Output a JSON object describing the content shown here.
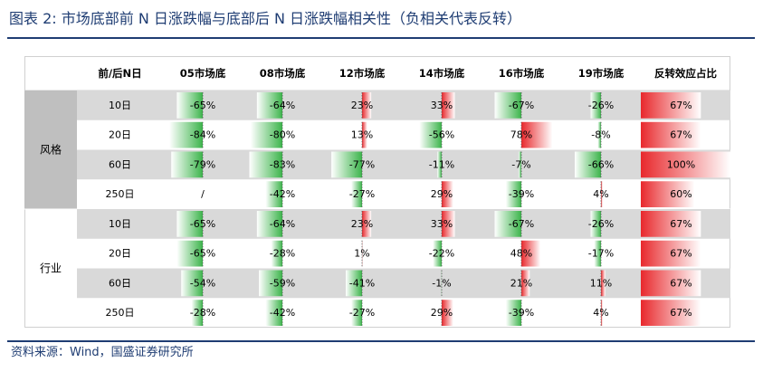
{
  "title": "图表 2:  市场底部前 N 日涨跌幅与底部后 N 日涨跌幅相关性（负相关代表反转）",
  "source": "资料来源：Wind，国盛证券研究所",
  "colors": {
    "title": "#1f3d73",
    "positive": "#e8282c",
    "negative": "#3cb44b",
    "band_gray": "#d9d9d9",
    "group_gray": "#bfbfbf"
  },
  "chart_data": {
    "type": "table",
    "header": [
      "前/后N日",
      "05市场底",
      "08市场底",
      "12市场底",
      "14市场底",
      "16市场底",
      "19市场底",
      "反转效应占比"
    ],
    "groups": [
      {
        "name": "风格",
        "rows": [
          {
            "label": "10日",
            "values": [
              -65,
              -64,
              23,
              33,
              -67,
              -26
            ],
            "display": [
              "-65%",
              "-64%",
              "23%",
              "33%",
              "-67%",
              "-26%"
            ],
            "ratio": 67,
            "ratio_label": "67%"
          },
          {
            "label": "20日",
            "values": [
              -84,
              -80,
              13,
              -56,
              78,
              -8
            ],
            "display": [
              "-84%",
              "-80%",
              "13%",
              "-56%",
              "78%",
              "-8%"
            ],
            "ratio": 67,
            "ratio_label": "67%"
          },
          {
            "label": "60日",
            "values": [
              -79,
              -83,
              -77,
              -11,
              -7,
              -66
            ],
            "display": [
              "-79%",
              "-83%",
              "-77%",
              "-11%",
              "-7%",
              "-66%"
            ],
            "ratio": 100,
            "ratio_label": "100%"
          },
          {
            "label": "250日",
            "values": [
              null,
              -42,
              -27,
              29,
              -39,
              4
            ],
            "display": [
              "/",
              "-42%",
              "-27%",
              "29%",
              "-39%",
              "4%"
            ],
            "ratio": 60,
            "ratio_label": "60%"
          }
        ]
      },
      {
        "name": "行业",
        "rows": [
          {
            "label": "10日",
            "values": [
              -65,
              -64,
              23,
              33,
              -67,
              -26
            ],
            "display": [
              "-65%",
              "-64%",
              "23%",
              "33%",
              "-67%",
              "-26%"
            ],
            "ratio": 67,
            "ratio_label": "67%"
          },
          {
            "label": "20日",
            "values": [
              -65,
              -28,
              1,
              -22,
              48,
              -17
            ],
            "display": [
              "-65%",
              "-28%",
              "1%",
              "-22%",
              "48%",
              "-17%"
            ],
            "ratio": 67,
            "ratio_label": "67%"
          },
          {
            "label": "60日",
            "values": [
              -54,
              -59,
              -41,
              -1,
              21,
              11
            ],
            "display": [
              "-54%",
              "-59%",
              "-41%",
              "-1%",
              "21%",
              "11%"
            ],
            "ratio": 67,
            "ratio_label": "67%"
          },
          {
            "label": "250日",
            "values": [
              -28,
              -42,
              -27,
              29,
              -39,
              4
            ],
            "display": [
              "-28%",
              "-42%",
              "-27%",
              "29%",
              "-39%",
              "4%"
            ],
            "ratio": 67,
            "ratio_label": "67%"
          }
        ]
      }
    ],
    "value_range": [
      -100,
      100
    ],
    "ratio_range": [
      0,
      100
    ]
  }
}
